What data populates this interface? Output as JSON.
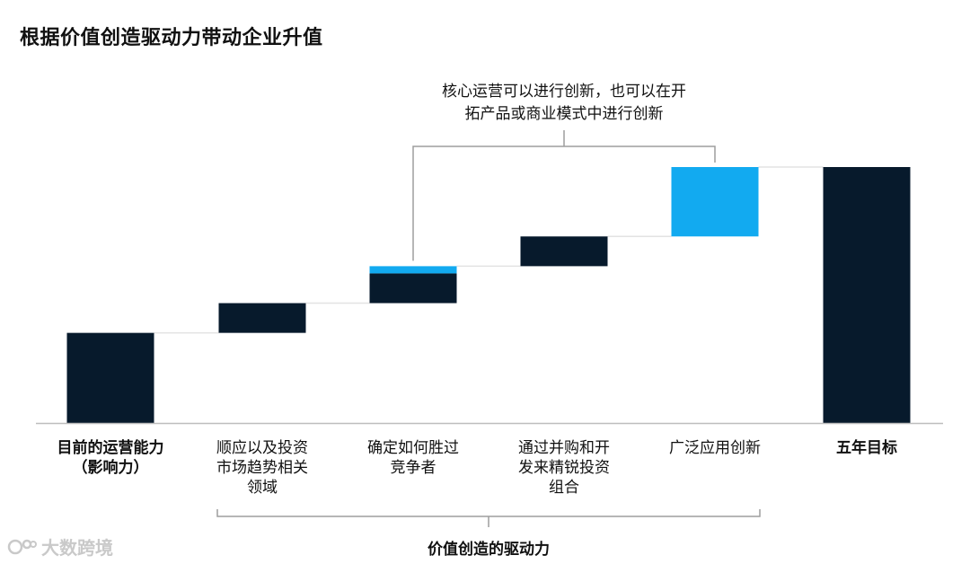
{
  "chart_data": {
    "type": "waterfall",
    "title": "根据价值创造驱动力带动企业升值",
    "categories": [
      "目前的运营能力\n（影响力）",
      "顺应以及投资\n市场趋势相关\n领域",
      "确定如何胜过\n竞争者",
      "通过并购和开\n发来精锐投资\n组合",
      "广泛应用创新",
      "五年目标"
    ],
    "bold_categories": [
      0,
      5
    ],
    "values": [
      {
        "kind": "total",
        "value": 100
      },
      {
        "kind": "step",
        "segments": [
          {
            "value": 33,
            "color": "#071a2c"
          }
        ]
      },
      {
        "kind": "step",
        "segments": [
          {
            "value": 33,
            "color": "#071a2c"
          },
          {
            "value": 8,
            "color": "#12aaf0"
          }
        ]
      },
      {
        "kind": "step",
        "segments": [
          {
            "value": 33,
            "color": "#071a2c"
          }
        ]
      },
      {
        "kind": "step",
        "segments": [
          {
            "value": 77,
            "color": "#12aaf0"
          }
        ]
      },
      {
        "kind": "total",
        "value": 284
      }
    ],
    "ylim": [
      0,
      300
    ],
    "colors": {
      "dark": "#071a2c",
      "accent": "#12aaf0",
      "connector": "#e3e3e3",
      "axis": "#bdbdbd",
      "bracket": "#9e9e9e"
    },
    "annotation": {
      "text_lines": [
        "核心运营可以进行创新，也可以在开",
        "拓产品或商业模式中进行创新"
      ],
      "spans_categories": [
        2,
        4
      ]
    },
    "bracket": {
      "label": "价值创造的驱动力",
      "spans_categories": [
        1,
        4
      ]
    }
  },
  "watermark": {
    "text": "大数跨境"
  }
}
